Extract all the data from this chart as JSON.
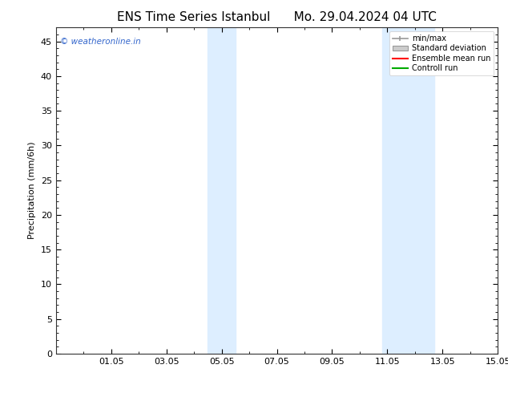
{
  "title_left": "ENS Time Series Istanbul",
  "title_right": "Mo. 29.04.2024 04 UTC",
  "ylabel": "Precipitation (mm/6h)",
  "xlabel": "",
  "watermark": "© weatheronline.in",
  "watermark_color": "#3366cc",
  "ylim": [
    0,
    47
  ],
  "yticks": [
    0,
    5,
    10,
    15,
    20,
    25,
    30,
    35,
    40,
    45
  ],
  "xtick_positions": [
    2,
    4,
    6,
    8,
    10,
    12,
    14,
    16
  ],
  "xtick_labels": [
    "01.05",
    "03.05",
    "05.05",
    "07.05",
    "09.05",
    "11.05",
    "13.05",
    "15.05"
  ],
  "xlim": [
    0,
    16
  ],
  "shaded_regions": [
    {
      "xstart": 5.5,
      "xend": 6.5
    },
    {
      "xstart": 11.8,
      "xend": 13.7
    }
  ],
  "shaded_color": "#ddeeff",
  "bg_color": "#ffffff",
  "legend_labels": [
    "min/max",
    "Standard deviation",
    "Ensemble mean run",
    "Controll run"
  ],
  "legend_colors_line": [
    "#999999",
    "#cccccc",
    "#ff0000",
    "#00aa00"
  ],
  "title_fontsize": 11,
  "axis_label_fontsize": 8,
  "tick_fontsize": 8,
  "legend_fontsize": 7
}
